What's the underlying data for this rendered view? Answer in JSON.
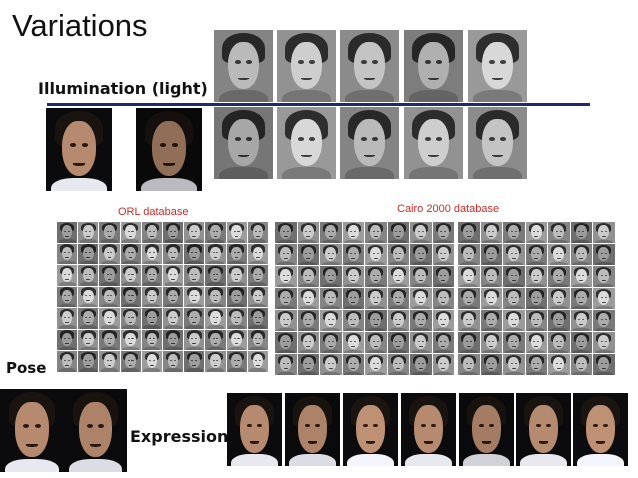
{
  "slide": {
    "title": "Variations",
    "illumination_label": "Illumination (light)",
    "orl_label": "ORL database",
    "cairo_label": "Cairo 2000 database",
    "pose_label": "Pose",
    "expression_label": "Expression"
  },
  "colors": {
    "divider": "#1f2a6b",
    "database_label": "#cc2a2a"
  }
}
